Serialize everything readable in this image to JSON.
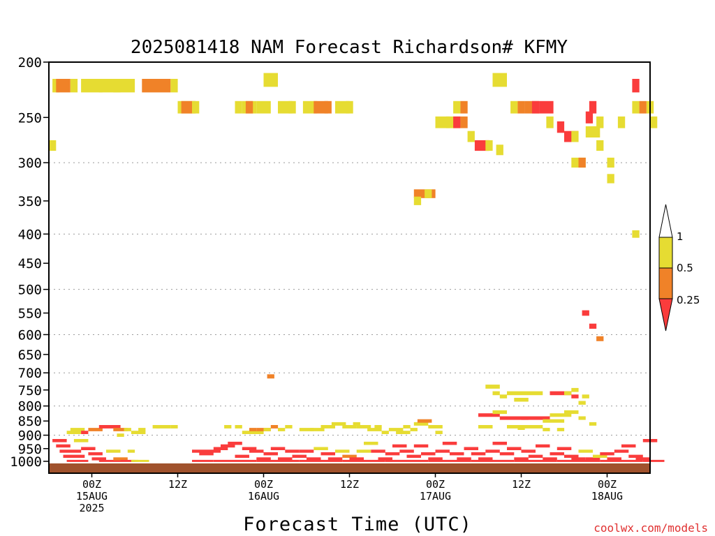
{
  "chart_data": {
    "type": "heatmap",
    "title": "2025081418 NAM Forecast Richardson# KFMY",
    "xlabel": "Forecast Time (UTC)",
    "credit": "coolwx.com/models",
    "y_axis": {
      "scale": "log-pressure",
      "range_hpa": [
        1000,
        200
      ],
      "ticks": [
        200,
        250,
        300,
        350,
        400,
        450,
        500,
        550,
        600,
        650,
        700,
        750,
        800,
        850,
        900,
        950,
        1000
      ],
      "dotted_gridlines": [
        300,
        400,
        500,
        600,
        700,
        800,
        900
      ]
    },
    "x_axis": {
      "unit": "forecast hour",
      "range": [
        0,
        84
      ],
      "ticks": [
        {
          "hour": 6,
          "lines": [
            "00Z",
            "15AUG",
            "2025"
          ]
        },
        {
          "hour": 18,
          "lines": [
            "12Z"
          ]
        },
        {
          "hour": 30,
          "lines": [
            "00Z",
            "16AUG"
          ]
        },
        {
          "hour": 42,
          "lines": [
            "12Z"
          ]
        },
        {
          "hour": 54,
          "lines": [
            "00Z",
            "17AUG"
          ]
        },
        {
          "hour": 66,
          "lines": [
            "12Z"
          ]
        },
        {
          "hour": 78,
          "lines": [
            "00Z",
            "18AUG"
          ]
        }
      ]
    },
    "legend": {
      "placement": "right",
      "labels": [
        "1",
        "0.5",
        "0.25"
      ],
      "bins": [
        {
          "range": "> 1",
          "color": "#ffffff"
        },
        {
          "range": "0.5-1",
          "color": "#e6dc32"
        },
        {
          "range": "0.25-0.5",
          "color": "#f08228"
        },
        {
          "range": "< 0.25",
          "color": "#fa3c3c"
        }
      ]
    },
    "ground_color": "#a0522d",
    "cells": [
      [
        0.5,
        220,
        1,
        1
      ],
      [
        1,
        220,
        2,
        2
      ],
      [
        3,
        220,
        1,
        1
      ],
      [
        4.5,
        220,
        3,
        1
      ],
      [
        7,
        220,
        3,
        1
      ],
      [
        9,
        220,
        3,
        1
      ],
      [
        13,
        220,
        4,
        2
      ],
      [
        17,
        220,
        1,
        1
      ],
      [
        18,
        240,
        2,
        1
      ],
      [
        18.5,
        240,
        2,
        2
      ],
      [
        20,
        240,
        1,
        1
      ],
      [
        26,
        240,
        1,
        1
      ],
      [
        27,
        240,
        2,
        1
      ],
      [
        27.5,
        240,
        1,
        2
      ],
      [
        29,
        240,
        2,
        1
      ],
      [
        30,
        215,
        2,
        1
      ],
      [
        32,
        240,
        2,
        1
      ],
      [
        33.5,
        240,
        1,
        1
      ],
      [
        35.5,
        240,
        2,
        1
      ],
      [
        37,
        240,
        2,
        2
      ],
      [
        38.5,
        240,
        1,
        2
      ],
      [
        40,
        240,
        2,
        1
      ],
      [
        41.5,
        240,
        1,
        1
      ],
      [
        54,
        255,
        2,
        1
      ],
      [
        55.5,
        255,
        2,
        1
      ],
      [
        56.5,
        255,
        1,
        3
      ],
      [
        57.5,
        255,
        1,
        2
      ],
      [
        62,
        215,
        2,
        1
      ],
      [
        58.5,
        270,
        1,
        1
      ],
      [
        59.5,
        280,
        2,
        3
      ],
      [
        61,
        280,
        1,
        1
      ],
      [
        62.5,
        285,
        1,
        1
      ],
      [
        56.5,
        240,
        1,
        1
      ],
      [
        57.5,
        240,
        1,
        2
      ],
      [
        64.5,
        240,
        1,
        1
      ],
      [
        65.5,
        240,
        1,
        2
      ],
      [
        66.5,
        240,
        2,
        2
      ],
      [
        67.5,
        240,
        1,
        3
      ],
      [
        68.5,
        240,
        2,
        3
      ],
      [
        69.5,
        255,
        1,
        1
      ],
      [
        71,
        260,
        1,
        3
      ],
      [
        72,
        270,
        2,
        3
      ],
      [
        73,
        270,
        1,
        1
      ],
      [
        73,
        300,
        2,
        1
      ],
      [
        74,
        300,
        1,
        2
      ],
      [
        75,
        265,
        2,
        1
      ],
      [
        75,
        250,
        1,
        3
      ],
      [
        75.5,
        240,
        1,
        3
      ],
      [
        76.5,
        280,
        1,
        1
      ],
      [
        76.5,
        255,
        1,
        1
      ],
      [
        78,
        300,
        1,
        1
      ],
      [
        78,
        320,
        1,
        1
      ],
      [
        79.5,
        255,
        1,
        1
      ],
      [
        81.5,
        220,
        1,
        3
      ],
      [
        81.5,
        240,
        1,
        1
      ],
      [
        82.5,
        240,
        1,
        2
      ],
      [
        83.5,
        240,
        1,
        1
      ],
      [
        84,
        255,
        1,
        1
      ],
      [
        81.5,
        400,
        1,
        1
      ],
      [
        0,
        280,
        1,
        1
      ],
      [
        51,
        340,
        3,
        2
      ],
      [
        52.5,
        340,
        1,
        1
      ],
      [
        51,
        350,
        1,
        1
      ],
      [
        74.5,
        550,
        1,
        3
      ],
      [
        75.5,
        580,
        1,
        3
      ],
      [
        76.5,
        610,
        1,
        2
      ],
      [
        30.5,
        710,
        1,
        2
      ],
      [
        61,
        740,
        2,
        1
      ],
      [
        62,
        760,
        1,
        1
      ],
      [
        64,
        760,
        4,
        1
      ],
      [
        68,
        760,
        1,
        1
      ],
      [
        70,
        760,
        3,
        3
      ],
      [
        72,
        760,
        1,
        1
      ],
      [
        63,
        770,
        1,
        1
      ],
      [
        65,
        780,
        2,
        1
      ],
      [
        73,
        750,
        1,
        1
      ],
      [
        73,
        770,
        1,
        3
      ],
      [
        74,
        790,
        1,
        1
      ],
      [
        74.5,
        770,
        1,
        1
      ],
      [
        60,
        830,
        3,
        3
      ],
      [
        62,
        820,
        2,
        1
      ],
      [
        63,
        840,
        4,
        3
      ],
      [
        66,
        840,
        4,
        3
      ],
      [
        69,
        850,
        3,
        1
      ],
      [
        70,
        830,
        3,
        1
      ],
      [
        72,
        820,
        2,
        1
      ],
      [
        60,
        870,
        2,
        1
      ],
      [
        64,
        870,
        2,
        1
      ],
      [
        66,
        870,
        3,
        1
      ],
      [
        65.5,
        875,
        1,
        1
      ],
      [
        69,
        880,
        1,
        1
      ],
      [
        71,
        880,
        1,
        1
      ],
      [
        74,
        840,
        1,
        1
      ],
      [
        75.5,
        860,
        1,
        1
      ],
      [
        2.5,
        890,
        2,
        1
      ],
      [
        3,
        880,
        2,
        1
      ],
      [
        4.5,
        890,
        1,
        3
      ],
      [
        5.5,
        880,
        2,
        2
      ],
      [
        7,
        870,
        3,
        3
      ],
      [
        9,
        880,
        2,
        2
      ],
      [
        9.5,
        900,
        1,
        1
      ],
      [
        10.5,
        880,
        1,
        1
      ],
      [
        11.5,
        890,
        2,
        1
      ],
      [
        12.5,
        880,
        1,
        1
      ],
      [
        14.5,
        870,
        1,
        1
      ],
      [
        15,
        870,
        2,
        1
      ],
      [
        17,
        870,
        1,
        1
      ],
      [
        24.5,
        870,
        1,
        1
      ],
      [
        26,
        870,
        1,
        1
      ],
      [
        27,
        890,
        3,
        1
      ],
      [
        28,
        880,
        1,
        2
      ],
      [
        29,
        880,
        2,
        2
      ],
      [
        30,
        880,
        1,
        1
      ],
      [
        31,
        870,
        1,
        2
      ],
      [
        32,
        880,
        1,
        1
      ],
      [
        33,
        870,
        1,
        1
      ],
      [
        35,
        880,
        2,
        1
      ],
      [
        36.5,
        880,
        2,
        1
      ],
      [
        38,
        870,
        2,
        1
      ],
      [
        39.5,
        860,
        2,
        1
      ],
      [
        41,
        870,
        2,
        1
      ],
      [
        42.5,
        860,
        1,
        1
      ],
      [
        43,
        870,
        2,
        1
      ],
      [
        44.5,
        880,
        2,
        1
      ],
      [
        45.5,
        870,
        1,
        1
      ],
      [
        46.5,
        890,
        1,
        1
      ],
      [
        47.5,
        880,
        2,
        1
      ],
      [
        48.5,
        890,
        2,
        1
      ],
      [
        49.5,
        870,
        1,
        1
      ],
      [
        50.5,
        880,
        1,
        1
      ],
      [
        51,
        860,
        2,
        1
      ],
      [
        51.5,
        850,
        2,
        2
      ],
      [
        53,
        870,
        2,
        1
      ],
      [
        54,
        890,
        1,
        1
      ],
      [
        0.5,
        920,
        2,
        3
      ],
      [
        1,
        940,
        2,
        3
      ],
      [
        1.5,
        960,
        3,
        3
      ],
      [
        2,
        980,
        3,
        3
      ],
      [
        2.5,
        1000,
        3,
        3
      ],
      [
        3.5,
        920,
        2,
        1
      ],
      [
        4.5,
        950,
        2,
        3
      ],
      [
        5.5,
        970,
        2,
        3
      ],
      [
        6,
        990,
        2,
        3
      ],
      [
        7,
        1000,
        3,
        3
      ],
      [
        8,
        960,
        2,
        1
      ],
      [
        9,
        990,
        2,
        2
      ],
      [
        10,
        1000,
        2,
        3
      ],
      [
        11,
        960,
        1,
        1
      ],
      [
        11.5,
        1000,
        1,
        1
      ],
      [
        12,
        1000,
        2,
        1
      ],
      [
        20,
        960,
        2,
        3
      ],
      [
        21,
        970,
        2,
        3
      ],
      [
        22,
        960,
        2,
        3
      ],
      [
        23,
        950,
        2,
        3
      ],
      [
        24,
        940,
        2,
        3
      ],
      [
        25,
        930,
        2,
        3
      ],
      [
        26,
        980,
        2,
        3
      ],
      [
        27,
        950,
        2,
        3
      ],
      [
        28,
        960,
        2,
        3
      ],
      [
        29,
        990,
        2,
        3
      ],
      [
        30,
        970,
        2,
        3
      ],
      [
        31,
        950,
        2,
        3
      ],
      [
        32,
        990,
        2,
        3
      ],
      [
        33,
        960,
        2,
        3
      ],
      [
        34,
        980,
        2,
        3
      ],
      [
        35,
        960,
        2,
        3
      ],
      [
        36,
        990,
        2,
        3
      ],
      [
        37,
        950,
        2,
        1
      ],
      [
        38,
        970,
        2,
        3
      ],
      [
        39,
        990,
        2,
        3
      ],
      [
        40,
        960,
        2,
        1
      ],
      [
        41,
        980,
        2,
        2
      ],
      [
        42,
        990,
        2,
        3
      ],
      [
        43,
        960,
        2,
        1
      ],
      [
        44,
        930,
        2,
        1
      ],
      [
        45,
        960,
        2,
        3
      ],
      [
        46,
        990,
        2,
        3
      ],
      [
        47,
        970,
        2,
        3
      ],
      [
        48,
        940,
        2,
        3
      ],
      [
        49,
        960,
        2,
        3
      ],
      [
        50,
        980,
        2,
        3
      ],
      [
        51,
        940,
        2,
        3
      ],
      [
        52,
        970,
        2,
        3
      ],
      [
        53,
        990,
        2,
        3
      ],
      [
        54,
        960,
        2,
        3
      ],
      [
        55,
        930,
        2,
        3
      ],
      [
        56,
        970,
        2,
        3
      ],
      [
        57,
        990,
        2,
        3
      ],
      [
        58,
        950,
        2,
        3
      ],
      [
        59,
        970,
        2,
        3
      ],
      [
        60,
        990,
        2,
        3
      ],
      [
        61,
        960,
        2,
        3
      ],
      [
        62,
        930,
        2,
        3
      ],
      [
        63,
        970,
        2,
        3
      ],
      [
        64,
        950,
        2,
        3
      ],
      [
        65,
        990,
        2,
        3
      ],
      [
        66,
        960,
        2,
        3
      ],
      [
        67,
        980,
        2,
        3
      ],
      [
        68,
        940,
        2,
        3
      ],
      [
        69,
        990,
        2,
        3
      ],
      [
        70,
        970,
        2,
        3
      ],
      [
        71,
        950,
        2,
        3
      ],
      [
        72,
        980,
        2,
        3
      ],
      [
        73,
        990,
        2,
        3
      ],
      [
        74,
        960,
        2,
        1
      ],
      [
        75,
        990,
        2,
        3
      ],
      [
        76,
        980,
        2,
        1
      ],
      [
        77,
        970,
        2,
        3
      ],
      [
        78,
        990,
        2,
        3
      ],
      [
        79,
        960,
        2,
        3
      ],
      [
        80,
        940,
        2,
        3
      ],
      [
        81,
        980,
        2,
        3
      ],
      [
        82,
        990,
        2,
        3
      ],
      [
        83,
        920,
        2,
        3
      ],
      [
        20,
        1000,
        3,
        3
      ],
      [
        23,
        1000,
        3,
        3
      ],
      [
        26,
        1000,
        3,
        3
      ],
      [
        29,
        1000,
        3,
        3
      ],
      [
        32,
        1000,
        3,
        3
      ],
      [
        35,
        1000,
        3,
        3
      ],
      [
        38,
        1000,
        3,
        3
      ],
      [
        41,
        1000,
        3,
        3
      ],
      [
        44,
        1000,
        3,
        3
      ],
      [
        47,
        1000,
        3,
        3
      ],
      [
        50,
        1000,
        3,
        3
      ],
      [
        53,
        1000,
        3,
        3
      ],
      [
        56,
        1000,
        3,
        3
      ],
      [
        59,
        1000,
        3,
        3
      ],
      [
        62,
        1000,
        3,
        3
      ],
      [
        65,
        1000,
        3,
        3
      ],
      [
        68,
        1000,
        3,
        3
      ],
      [
        71,
        1000,
        3,
        3
      ],
      [
        74,
        1000,
        3,
        3
      ],
      [
        77,
        1000,
        3,
        3
      ],
      [
        80,
        1000,
        3,
        3
      ],
      [
        83,
        1000,
        3,
        3
      ]
    ]
  }
}
